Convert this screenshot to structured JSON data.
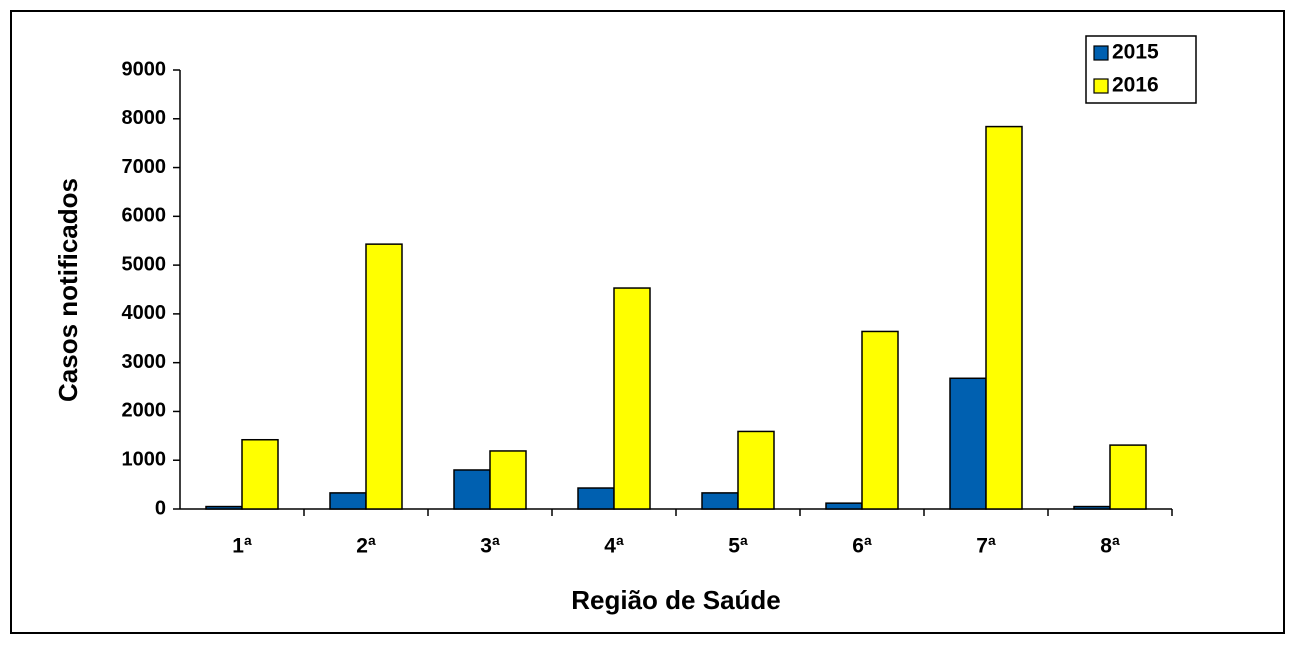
{
  "chart_data": {
    "type": "bar",
    "x_label": "Região de Saúde",
    "y_label": "Casos notificados",
    "categories": [
      "1ª",
      "2ª",
      "3ª",
      "4ª",
      "5ª",
      "6ª",
      "7ª",
      "8ª"
    ],
    "series": [
      {
        "name": "2015",
        "color": "#0060b0",
        "values": [
          50,
          330,
          800,
          430,
          330,
          120,
          2680,
          50
        ]
      },
      {
        "name": "2016",
        "color": "#ffff00",
        "values": [
          1420,
          5430,
          1190,
          4530,
          1590,
          3640,
          7840,
          1310
        ]
      }
    ],
    "ylim": [
      0,
      9000
    ],
    "yticks": [
      0,
      1000,
      2000,
      3000,
      4000,
      5000,
      6000,
      7000,
      8000,
      9000
    ],
    "legend": "top-right"
  }
}
